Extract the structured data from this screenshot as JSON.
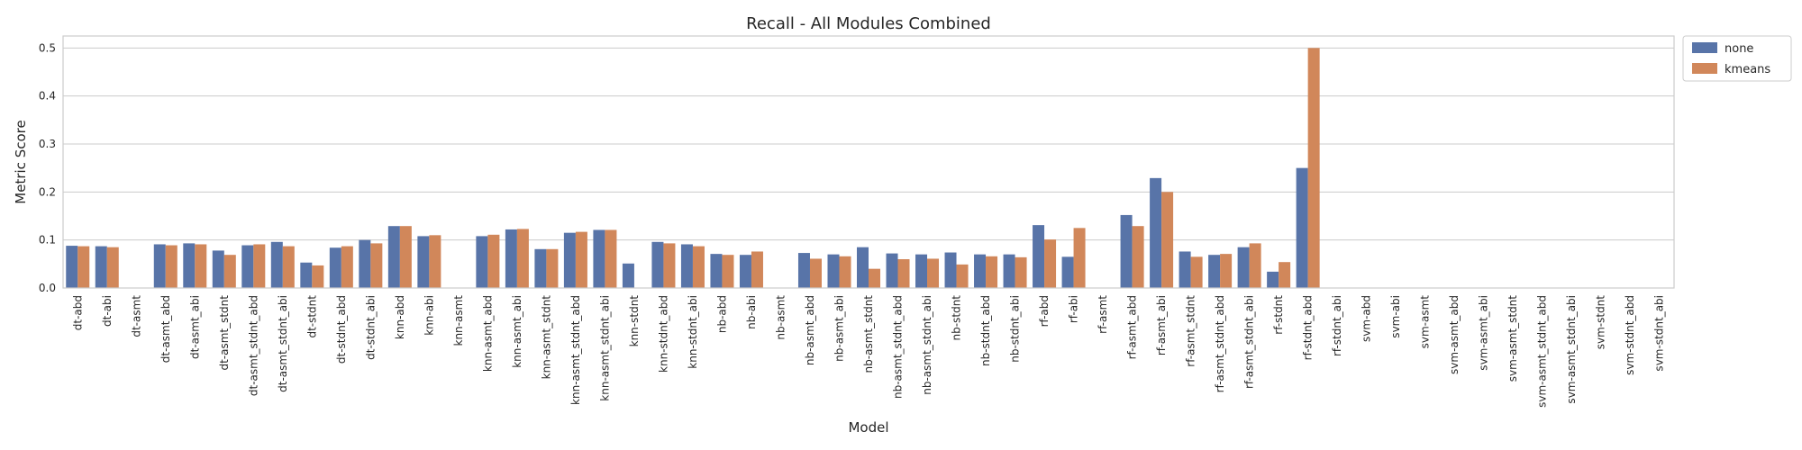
{
  "chart_data": {
    "type": "bar",
    "title": "Recall - All Modules Combined",
    "xlabel": "Model",
    "ylabel": "Metric Score",
    "ylim": [
      0,
      0.525
    ],
    "yticks": [
      "0.0",
      "0.1",
      "0.2",
      "0.3",
      "0.4",
      "0.5"
    ],
    "grid": true,
    "legend_position": "outside-top-right",
    "categories": [
      "dt-abd",
      "dt-abi",
      "dt-asmt",
      "dt-asmt_abd",
      "dt-asmt_abi",
      "dt-asmt_stdnt",
      "dt-asmt_stdnt_abd",
      "dt-asmt_stdnt_abi",
      "dt-stdnt",
      "dt-stdnt_abd",
      "dt-stdnt_abi",
      "knn-abd",
      "knn-abi",
      "knn-asmt",
      "knn-asmt_abd",
      "knn-asmt_abi",
      "knn-asmt_stdnt",
      "knn-asmt_stdnt_abd",
      "knn-asmt_stdnt_abi",
      "knn-stdnt",
      "knn-stdnt_abd",
      "knn-stdnt_abi",
      "nb-abd",
      "nb-abi",
      "nb-asmt",
      "nb-asmt_abd",
      "nb-asmt_abi",
      "nb-asmt_stdnt",
      "nb-asmt_stdnt_abd",
      "nb-asmt_stdnt_abi",
      "nb-stdnt",
      "nb-stdnt_abd",
      "nb-stdnt_abi",
      "rf-abd",
      "rf-abi",
      "rf-asmt",
      "rf-asmt_abd",
      "rf-asmt_abi",
      "rf-asmt_stdnt",
      "rf-asmt_stdnt_abd",
      "rf-asmt_stdnt_abi",
      "rf-stdnt",
      "rf-stdnt_abd",
      "rf-stdnt_abi",
      "svm-abd",
      "svm-abi",
      "svm-asmt",
      "svm-asmt_abd",
      "svm-asmt_abi",
      "svm-asmt_stdnt",
      "svm-asmt_stdnt_abd",
      "svm-asmt_stdnt_abi",
      "svm-stdnt",
      "svm-stdnt_abd",
      "svm-stdnt_abi"
    ],
    "series": [
      {
        "name": "none",
        "color": "#5874a8",
        "values": [
          0.088,
          0.087,
          0,
          0.091,
          0.093,
          0.078,
          0.089,
          0.096,
          0.053,
          0.084,
          0.1,
          0.129,
          0.108,
          0,
          0.108,
          0.122,
          0.081,
          0.115,
          0.121,
          0.051,
          0.096,
          0.091,
          0.071,
          0.069,
          0,
          0.073,
          0.07,
          0.085,
          0.072,
          0.07,
          0.074,
          0.07,
          0.07,
          0.131,
          0.065,
          0,
          0.152,
          0.229,
          0.076,
          0.069,
          0.085,
          0.034,
          0.25,
          0,
          0,
          0,
          0,
          0,
          0,
          0,
          0,
          0,
          0,
          0,
          0
        ]
      },
      {
        "name": "kmeans",
        "color": "#d1875a",
        "values": [
          0.087,
          0.085,
          0,
          0.089,
          0.091,
          0.069,
          0.091,
          0.087,
          0.047,
          0.087,
          0.093,
          0.129,
          0.11,
          0,
          0.111,
          0.123,
          0.081,
          0.117,
          0.121,
          0,
          0.093,
          0.087,
          0.069,
          0.076,
          0,
          0.061,
          0.066,
          0.04,
          0.06,
          0.061,
          0.049,
          0.066,
          0.064,
          0.101,
          0.125,
          0,
          0.129,
          0.2,
          0.065,
          0.071,
          0.093,
          0.054,
          0.5,
          0,
          0,
          0,
          0,
          0,
          0,
          0,
          0,
          0,
          0,
          0,
          0
        ]
      }
    ]
  }
}
